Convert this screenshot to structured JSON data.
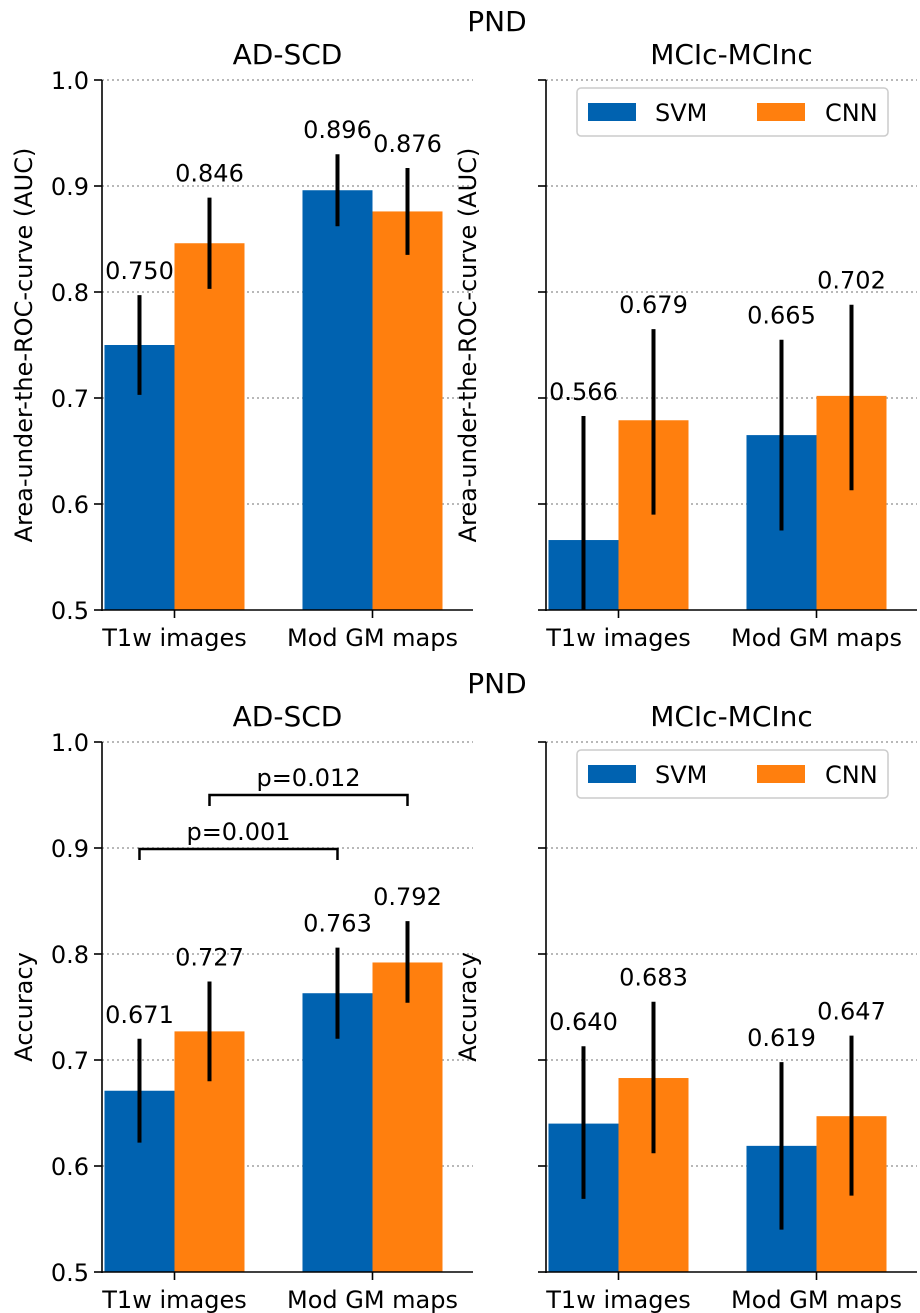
{
  "colors": {
    "svm": "#0062b0",
    "cnn": "#ff7f0e",
    "axis": "#000000",
    "grid": "#a0a0a0"
  },
  "rows": [
    {
      "title": "PND"
    },
    {
      "title": "PND"
    }
  ],
  "chart_data": [
    {
      "type": "bar",
      "title": "AD-SCD",
      "xlabel": "",
      "ylabel": "Area-under-the-ROC-curve (AUC)",
      "ylim": [
        0.5,
        1.0
      ],
      "yticks": [
        "0.5",
        "0.6",
        "0.7",
        "0.8",
        "0.9",
        "1.0"
      ],
      "grid": true,
      "categories": [
        "T1w images",
        "Mod GM maps"
      ],
      "series": [
        {
          "name": "SVM",
          "values": [
            0.75,
            0.896
          ],
          "labels": [
            "0.750",
            "0.896"
          ],
          "err": [
            [
              0.703,
              0.797
            ],
            [
              0.862,
              0.93
            ]
          ]
        },
        {
          "name": "CNN",
          "values": [
            0.846,
            0.876
          ],
          "labels": [
            "0.846",
            "0.876"
          ],
          "err": [
            [
              0.803,
              0.889
            ],
            [
              0.835,
              0.917
            ]
          ]
        }
      ],
      "annotations": []
    },
    {
      "type": "bar",
      "title": "MCIc-MCInc",
      "xlabel": "",
      "ylabel": "Area-under-the-ROC-curve (AUC)",
      "ylim": [
        0.5,
        1.0
      ],
      "yticks": [
        "",
        "",
        "",
        "",
        "",
        ""
      ],
      "grid": true,
      "legend": "top-right",
      "categories": [
        "T1w images",
        "Mod GM maps"
      ],
      "series": [
        {
          "name": "SVM",
          "values": [
            0.566,
            0.665
          ],
          "labels": [
            "0.566",
            "0.665"
          ],
          "err": [
            [
              0.5,
              0.683
            ],
            [
              0.575,
              0.755
            ]
          ]
        },
        {
          "name": "CNN",
          "values": [
            0.679,
            0.702
          ],
          "labels": [
            "0.679",
            "0.702"
          ],
          "err": [
            [
              0.59,
              0.765
            ],
            [
              0.613,
              0.788
            ]
          ]
        }
      ],
      "annotations": []
    },
    {
      "type": "bar",
      "title": "AD-SCD",
      "xlabel": "",
      "ylabel": "Accuracy",
      "ylim": [
        0.5,
        1.0
      ],
      "yticks": [
        "0.5",
        "0.6",
        "0.7",
        "0.8",
        "0.9",
        "1.0"
      ],
      "grid": true,
      "categories": [
        "T1w images",
        "Mod GM maps"
      ],
      "series": [
        {
          "name": "SVM",
          "values": [
            0.671,
            0.763
          ],
          "labels": [
            "0.671",
            "0.763"
          ],
          "err": [
            [
              0.622,
              0.72
            ],
            [
              0.72,
              0.806
            ]
          ]
        },
        {
          "name": "CNN",
          "values": [
            0.727,
            0.792
          ],
          "labels": [
            "0.727",
            "0.792"
          ],
          "err": [
            [
              0.68,
              0.774
            ],
            [
              0.754,
              0.831
            ]
          ]
        }
      ],
      "annotations": [
        {
          "label": "p=0.012",
          "from": [
            0,
            1
          ],
          "to": [
            1,
            1
          ],
          "y": 0.95
        },
        {
          "label": "p=0.001",
          "from": [
            0,
            0
          ],
          "to": [
            1,
            0
          ],
          "y": 0.899
        }
      ]
    },
    {
      "type": "bar",
      "title": "MCIc-MCInc",
      "xlabel": "",
      "ylabel": "Accuracy",
      "ylim": [
        0.5,
        1.0
      ],
      "yticks": [
        "",
        "",
        "",
        "",
        "",
        ""
      ],
      "grid": true,
      "legend": "top-right",
      "categories": [
        "T1w images",
        "Mod GM maps"
      ],
      "series": [
        {
          "name": "SVM",
          "values": [
            0.64,
            0.619
          ],
          "labels": [
            "0.640",
            "0.619"
          ],
          "err": [
            [
              0.569,
              0.713
            ],
            [
              0.54,
              0.698
            ]
          ]
        },
        {
          "name": "CNN",
          "values": [
            0.683,
            0.647
          ],
          "labels": [
            "0.683",
            "0.647"
          ],
          "err": [
            [
              0.612,
              0.755
            ],
            [
              0.572,
              0.723
            ]
          ]
        }
      ],
      "annotations": []
    }
  ]
}
